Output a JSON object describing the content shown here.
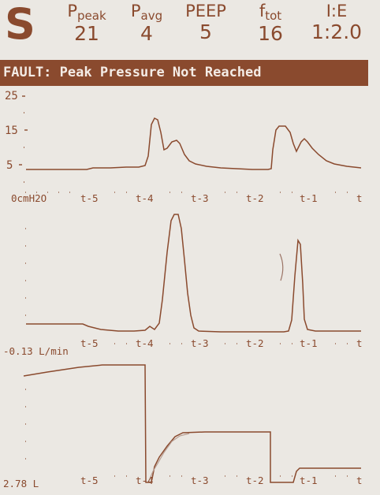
{
  "header": {
    "mode": "S",
    "params": [
      {
        "label_main": "P",
        "label_sub": "peak",
        "value": "21"
      },
      {
        "label_main": "P",
        "label_sub": "avg",
        "value": "4"
      },
      {
        "label_main": "PEEP",
        "label_sub": "",
        "value": "5"
      },
      {
        "label_main": "f",
        "label_sub": "tot",
        "value": "16"
      },
      {
        "label_main": "I:E",
        "label_sub": "",
        "value": "1:2.0"
      }
    ]
  },
  "fault": {
    "text": "FAULT:  Peak Pressure Not Reached"
  },
  "pressure_graph": {
    "y_ticks": [
      "25",
      "15",
      "5"
    ],
    "unit_label": "0cmH2O",
    "x_ticks": [
      "t-5",
      "t-4",
      "t-3",
      "t-2",
      "t-1",
      "t"
    ]
  },
  "flow_graph": {
    "unit_label": "-0.13 L/min",
    "x_ticks": [
      "t-5",
      "t-4",
      "t-3",
      "t-2",
      "t-1",
      "t"
    ]
  },
  "volume_graph": {
    "unit_label": "2.78  L",
    "x_ticks": [
      "t-5",
      "t-4",
      "t-3",
      "t-2",
      "t-1",
      "t"
    ]
  },
  "colors": {
    "trace": "#8a4a2e",
    "background": "#ebe8e3",
    "fault_bar": "#8a4a2e"
  }
}
